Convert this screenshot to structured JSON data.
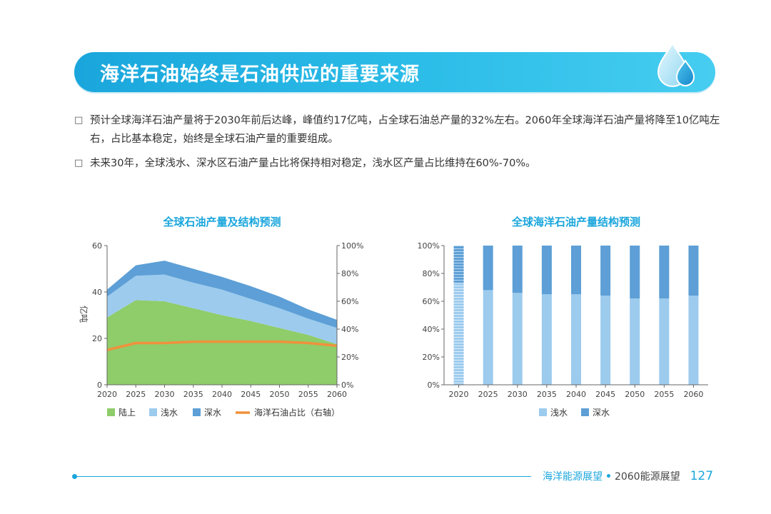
{
  "header": {
    "title": "海洋石油始终是石油供应的重要来源"
  },
  "bullets": [
    {
      "mark": "□",
      "text": "预计全球海洋石油产量将于2030年前后达峰，峰值约17亿吨，占全球石油总产量的32%左右。2060年全球海洋石油产量将降至10亿吨左右，占比基本稳定，始终是全球石油产量的重要组成。"
    },
    {
      "mark": "□",
      "text": "未来30年，全球浅水、深水区石油产量占比将保持相对稳定，浅水区产量占比维持在60%-70%。"
    }
  ],
  "colors": {
    "land": "#8fcc6a",
    "shallow": "#9ccbee",
    "deep": "#5d9fd6",
    "ratio": "#f0913c",
    "accent": "#1aa6dc"
  },
  "chart_data": [
    {
      "type": "area",
      "title": "全球石油产量及结构预测",
      "x": [
        "2020",
        "2025",
        "2030",
        "2035",
        "2040",
        "2045",
        "2050",
        "2055",
        "2060"
      ],
      "ylabel": "亿吨",
      "ylim": [
        0,
        60
      ],
      "yticks": [
        "0",
        "20",
        "40",
        "60"
      ],
      "y2lim": [
        0,
        100
      ],
      "y2ticks": [
        "0%",
        "20%",
        "40%",
        "60%",
        "80%",
        "100%"
      ],
      "series": [
        {
          "name": "陆上",
          "values": [
            29,
            36.5,
            36,
            33,
            30,
            27.5,
            24.5,
            21.5,
            17.5
          ]
        },
        {
          "name": "浅水",
          "values": [
            9,
            10.5,
            11.5,
            11,
            11,
            9.5,
            8.5,
            7,
            7
          ]
        },
        {
          "name": "深水",
          "values": [
            3,
            4.5,
            6,
            6,
            5.5,
            5.5,
            5,
            4,
            3.5
          ]
        },
        {
          "name": "海洋石油占比（右轴）",
          "axis": "right",
          "values": [
            25,
            30,
            30,
            31,
            31,
            31,
            31,
            30,
            28
          ]
        }
      ]
    },
    {
      "type": "bar",
      "stacked": true,
      "title": "全球海洋石油产量结构预测",
      "categories": [
        "2020",
        "2025",
        "2030",
        "2035",
        "2040",
        "2045",
        "2050",
        "2055",
        "2060"
      ],
      "ylim": [
        0,
        100
      ],
      "yticks": [
        "0%",
        "20%",
        "40%",
        "60%",
        "80%",
        "100%"
      ],
      "series": [
        {
          "name": "浅水",
          "values": [
            73,
            68,
            66,
            65,
            65,
            64,
            62,
            62,
            64
          ]
        },
        {
          "name": "深水",
          "values": [
            27,
            32,
            34,
            35,
            35,
            36,
            38,
            38,
            36
          ]
        }
      ]
    }
  ],
  "footer": {
    "brand": "海洋能源展望",
    "separator": "•",
    "book": "2060能源展望",
    "page": "127"
  }
}
